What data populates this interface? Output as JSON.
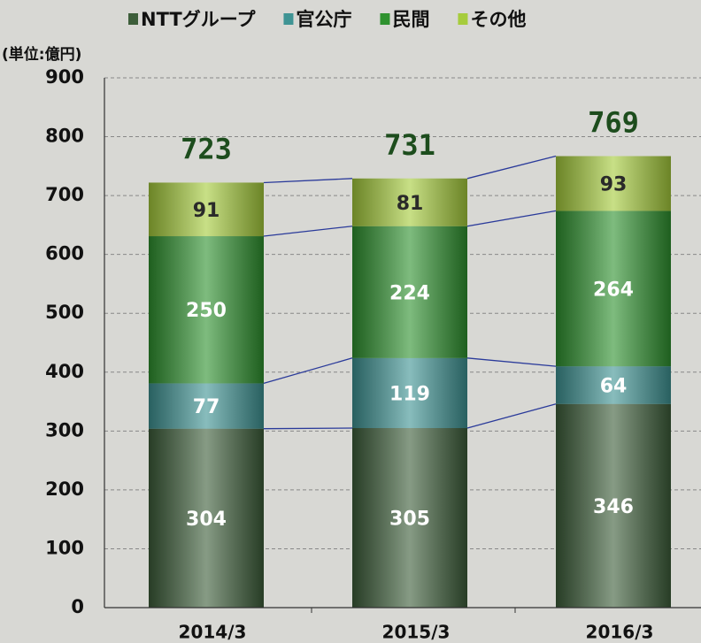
{
  "chart_data": {
    "type": "stacked_bar",
    "unit_label": "(単位:億円)",
    "categories": [
      "2014/3",
      "2015/3",
      "2016/3"
    ],
    "series": [
      {
        "name": "NTTグループ",
        "color": "#3d5e3a",
        "label_color": "#ffffff",
        "values": [
          304,
          305,
          346
        ]
      },
      {
        "name": "官公庁",
        "color": "#3f9494",
        "label_color": "#ffffff",
        "values": [
          77,
          119,
          64
        ]
      },
      {
        "name": "民間",
        "color": "#2f922f",
        "label_color": "#ffffff",
        "values": [
          250,
          224,
          264
        ]
      },
      {
        "name": "その他",
        "color": "#a6cc3c",
        "label_color": "#2a2a2a",
        "values": [
          91,
          81,
          93
        ]
      }
    ],
    "totals": [
      723,
      731,
      769
    ],
    "total_color": "#1d4d1d",
    "ylim": [
      0,
      900
    ],
    "yticks": [
      0,
      100,
      200,
      300,
      400,
      500,
      600,
      700,
      800,
      900
    ],
    "grid": true
  }
}
